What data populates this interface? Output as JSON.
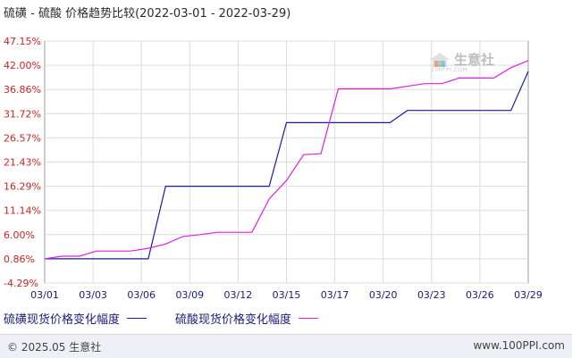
{
  "chart_data": {
    "type": "line",
    "title": "硫磺 - 硫酸 价格趋势比较(2022-03-01 - 2022-03-29)",
    "x_ticks": [
      "03/01",
      "03/03",
      "03/06",
      "03/09",
      "03/12",
      "03/15",
      "03/17",
      "03/20",
      "03/23",
      "03/26",
      "03/29"
    ],
    "y_ticks": [
      "47.15%",
      "42.00%",
      "36.86%",
      "31.72%",
      "26.57%",
      "21.43%",
      "16.29%",
      "11.14%",
      "6.00%",
      "0.86%",
      "-4.29%"
    ],
    "ylim": [
      -4.29,
      47.15
    ],
    "xlim": [
      "2022-03-01",
      "2022-03-29"
    ],
    "grid": true,
    "series": [
      {
        "name": "硫磺现货价格变化幅度",
        "color": "#1a1aaa",
        "points": [
          [
            "2022-03-01",
            0.86
          ],
          [
            "2022-03-07",
            0.86
          ],
          [
            "2022-03-08",
            16.29
          ],
          [
            "2022-03-14",
            16.29
          ],
          [
            "2022-03-15",
            29.8
          ],
          [
            "2022-03-21",
            29.8
          ],
          [
            "2022-03-22",
            32.4
          ],
          [
            "2022-03-28",
            32.4
          ],
          [
            "2022-03-29",
            40.7
          ]
        ]
      },
      {
        "name": "硫酸现货价格变化幅度",
        "color": "#e020e0",
        "points": [
          [
            "2022-03-01",
            0.86
          ],
          [
            "2022-03-02",
            1.4
          ],
          [
            "2022-03-03",
            1.4
          ],
          [
            "2022-03-04",
            2.5
          ],
          [
            "2022-03-06",
            2.5
          ],
          [
            "2022-03-07",
            3.1
          ],
          [
            "2022-03-08",
            4.0
          ],
          [
            "2022-03-09",
            5.6
          ],
          [
            "2022-03-10",
            6.0
          ],
          [
            "2022-03-11",
            6.5
          ],
          [
            "2022-03-13",
            6.5
          ],
          [
            "2022-03-14",
            13.6
          ],
          [
            "2022-03-15",
            17.5
          ],
          [
            "2022-03-16",
            23.0
          ],
          [
            "2022-03-17",
            23.2
          ],
          [
            "2022-03-18",
            37.0
          ],
          [
            "2022-03-21",
            37.0
          ],
          [
            "2022-03-23",
            38.1
          ],
          [
            "2022-03-24",
            38.1
          ],
          [
            "2022-03-25",
            39.3
          ],
          [
            "2022-03-27",
            39.3
          ],
          [
            "2022-03-28",
            41.5
          ],
          [
            "2022-03-29",
            43.0
          ]
        ]
      }
    ]
  },
  "footer": {
    "copyright": "© 2025.05 生意社",
    "url": "www.100PPI.com"
  },
  "watermark": {
    "logo_text": "生意社",
    "logo_url": "100PPI.COM"
  }
}
